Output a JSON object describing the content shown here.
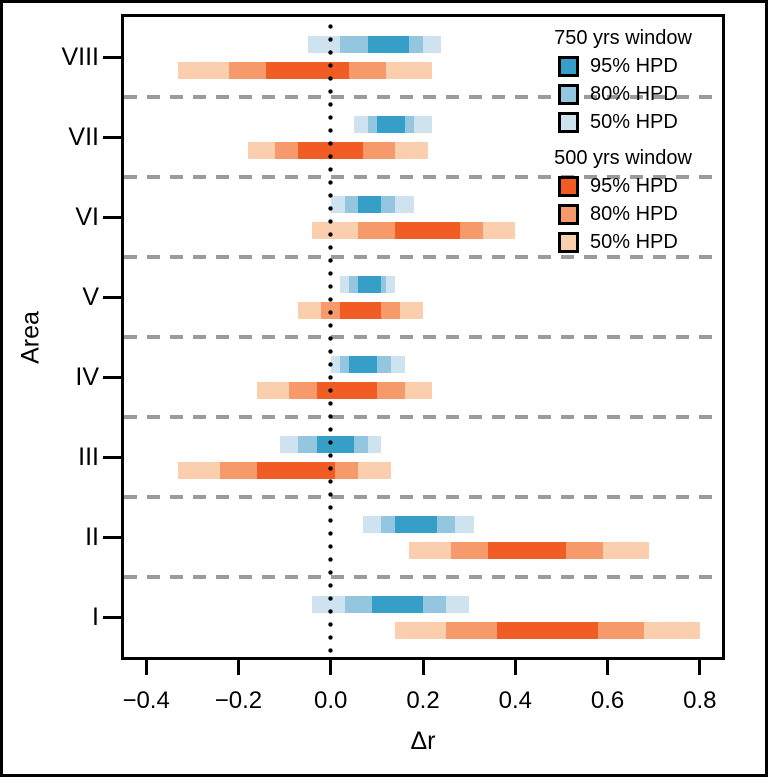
{
  "axes": {
    "x_label": "Δr",
    "y_label": "Area",
    "x_tick_labels": [
      "−0.4",
      "−0.2",
      "0.0",
      "0.2",
      "0.4",
      "0.6",
      "0.8"
    ]
  },
  "legend": {
    "position": "top-right",
    "groups": [
      {
        "title": "750 yrs window",
        "items": [
          {
            "label": "95% HPD",
            "color": "#359fc7"
          },
          {
            "label": "80% HPD",
            "color": "#94c6df"
          },
          {
            "label": "50% HPD",
            "color": "#cfe2ef"
          }
        ]
      },
      {
        "title": "500 yrs window",
        "items": [
          {
            "label": "95% HPD",
            "color": "#f05c24"
          },
          {
            "label": "80% HPD",
            "color": "#f79a6b"
          },
          {
            "label": "50% HPD",
            "color": "#fbcfad"
          }
        ]
      }
    ]
  },
  "chart_data": {
    "type": "bar",
    "subtype": "horizontal-nested-hpd-intervals",
    "title": "",
    "xlabel": "Δr",
    "ylabel": "Area",
    "xlim": [
      -0.448,
      0.848
    ],
    "x_ticks": [
      -0.4,
      -0.2,
      0.0,
      0.2,
      0.4,
      0.6,
      0.8
    ],
    "zero_line": 0.0,
    "grid": "dashed-horizontal-separators",
    "separator_color": "#9b9b9b",
    "categories": [
      "VIII",
      "VII",
      "VI",
      "V",
      "IV",
      "III",
      "II",
      "I"
    ],
    "series": [
      {
        "name": "750 yrs window",
        "colors": {
          "hpd95": "#359fc7",
          "hpd80": "#94c6df",
          "hpd50": "#cfe2ef"
        },
        "intervals": [
          {
            "area": "VIII",
            "hpd50": [
              -0.05,
              0.24
            ],
            "hpd80": [
              0.02,
              0.2
            ],
            "hpd95": [
              0.08,
              0.17
            ]
          },
          {
            "area": "VII",
            "hpd50": [
              0.05,
              0.22
            ],
            "hpd80": [
              0.08,
              0.18
            ],
            "hpd95": [
              0.1,
              0.16
            ]
          },
          {
            "area": "VI",
            "hpd50": [
              0.0,
              0.18
            ],
            "hpd80": [
              0.03,
              0.14
            ],
            "hpd95": [
              0.06,
              0.11
            ]
          },
          {
            "area": "V",
            "hpd50": [
              0.02,
              0.14
            ],
            "hpd80": [
              0.04,
              0.12
            ],
            "hpd95": [
              0.06,
              0.11
            ]
          },
          {
            "area": "IV",
            "hpd50": [
              0.0,
              0.16
            ],
            "hpd80": [
              0.02,
              0.13
            ],
            "hpd95": [
              0.04,
              0.1
            ]
          },
          {
            "area": "III",
            "hpd50": [
              -0.11,
              0.11
            ],
            "hpd80": [
              -0.07,
              0.08
            ],
            "hpd95": [
              -0.03,
              0.05
            ]
          },
          {
            "area": "II",
            "hpd50": [
              0.07,
              0.31
            ],
            "hpd80": [
              0.11,
              0.27
            ],
            "hpd95": [
              0.14,
              0.23
            ]
          },
          {
            "area": "I",
            "hpd50": [
              -0.04,
              0.3
            ],
            "hpd80": [
              0.03,
              0.25
            ],
            "hpd95": [
              0.09,
              0.2
            ]
          }
        ]
      },
      {
        "name": "500 yrs window",
        "colors": {
          "hpd95": "#f05c24",
          "hpd80": "#f79a6b",
          "hpd50": "#fbcfad"
        },
        "intervals": [
          {
            "area": "VIII",
            "hpd50": [
              -0.33,
              0.22
            ],
            "hpd80": [
              -0.22,
              0.12
            ],
            "hpd95": [
              -0.14,
              0.04
            ]
          },
          {
            "area": "VII",
            "hpd50": [
              -0.18,
              0.21
            ],
            "hpd80": [
              -0.12,
              0.14
            ],
            "hpd95": [
              -0.07,
              0.07
            ]
          },
          {
            "area": "VI",
            "hpd50": [
              -0.04,
              0.4
            ],
            "hpd80": [
              0.06,
              0.33
            ],
            "hpd95": [
              0.14,
              0.28
            ]
          },
          {
            "area": "V",
            "hpd50": [
              -0.07,
              0.2
            ],
            "hpd80": [
              -0.02,
              0.15
            ],
            "hpd95": [
              0.02,
              0.11
            ]
          },
          {
            "area": "IV",
            "hpd50": [
              -0.16,
              0.22
            ],
            "hpd80": [
              -0.09,
              0.16
            ],
            "hpd95": [
              -0.03,
              0.1
            ]
          },
          {
            "area": "III",
            "hpd50": [
              -0.33,
              0.13
            ],
            "hpd80": [
              -0.24,
              0.06
            ],
            "hpd95": [
              -0.16,
              0.01
            ]
          },
          {
            "area": "II",
            "hpd50": [
              0.17,
              0.69
            ],
            "hpd80": [
              0.26,
              0.59
            ],
            "hpd95": [
              0.34,
              0.51
            ]
          },
          {
            "area": "I",
            "hpd50": [
              0.14,
              0.8
            ],
            "hpd80": [
              0.25,
              0.68
            ],
            "hpd95": [
              0.36,
              0.58
            ]
          }
        ]
      }
    ]
  }
}
